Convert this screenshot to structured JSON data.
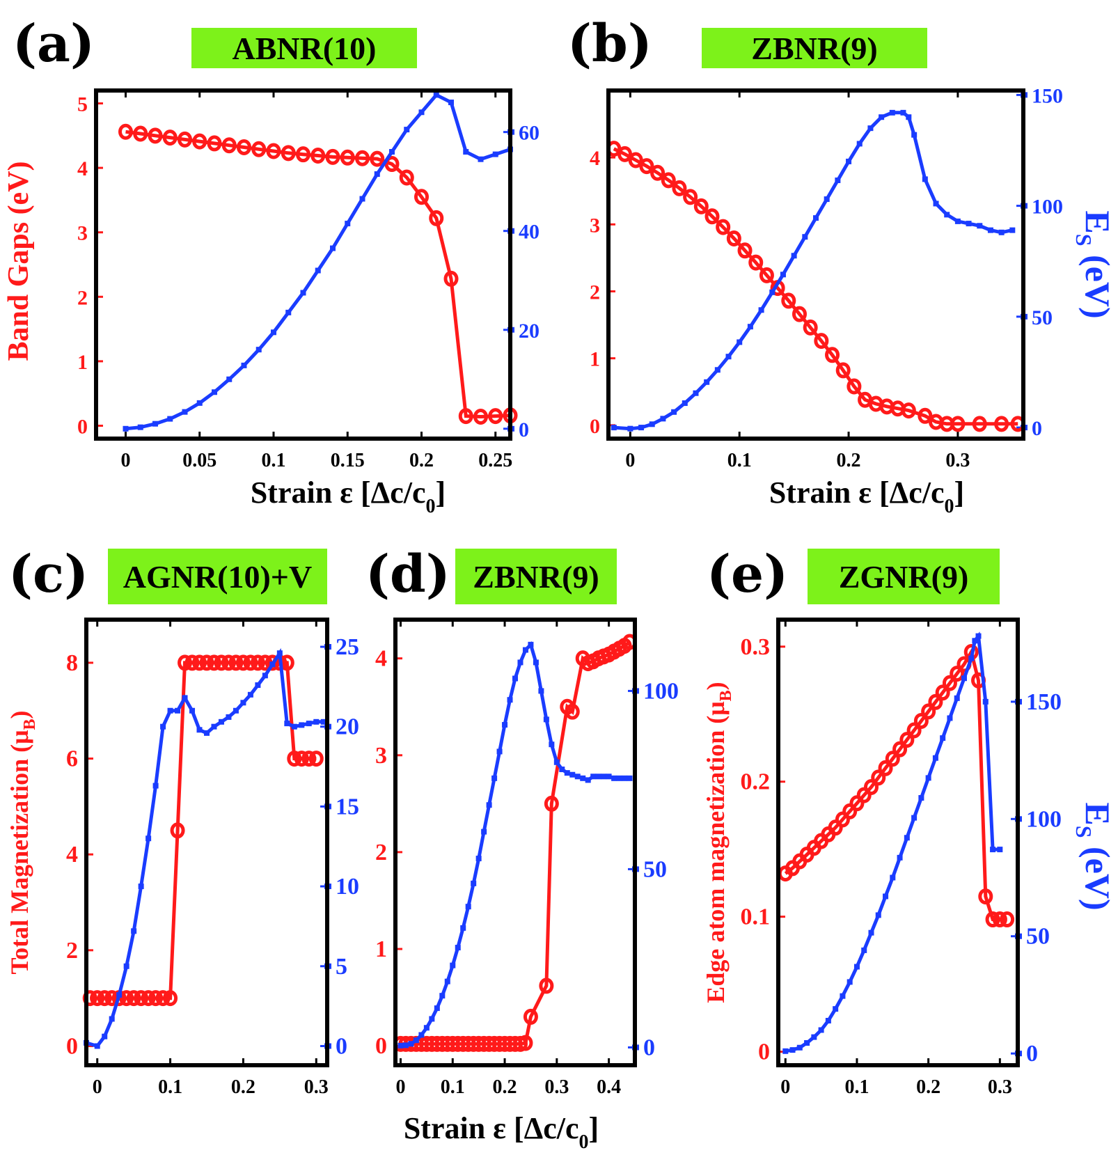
{
  "colors": {
    "red": "#ff1a1a",
    "blue": "#1a3cff",
    "title_bg": "#7df21a"
  },
  "chart_data": [
    {
      "type": "line",
      "letter": "(a)",
      "title": "ABNR(10)",
      "xlabel": "Strain ε [Δc/c",
      "xlabel_sub": "0",
      "xlabel_end": "]",
      "ylabel_left": "Band Gaps (eV)",
      "ylabel_right": "",
      "xlim": [
        -0.02,
        0.26
      ],
      "ylim_left": [
        -0.2,
        5.2
      ],
      "ylim_right": [
        -2,
        68.4
      ],
      "xticks": [
        0,
        0.05,
        0.1,
        0.15,
        0.2,
        0.25
      ],
      "xtick_labels": [
        "0",
        "0.05",
        "0.1",
        "0.15",
        "0.2",
        "0.25"
      ],
      "yticks_left": [
        0,
        1,
        2,
        3,
        4,
        5
      ],
      "yticks_right": [
        0,
        20,
        40,
        60
      ],
      "series": [
        {
          "name": "Band gap",
          "axis": "left",
          "marker": "circle",
          "x": [
            0,
            0.01,
            0.02,
            0.03,
            0.04,
            0.05,
            0.06,
            0.07,
            0.08,
            0.09,
            0.1,
            0.11,
            0.12,
            0.13,
            0.14,
            0.15,
            0.16,
            0.17,
            0.18,
            0.19,
            0.2,
            0.21,
            0.22,
            0.23,
            0.24,
            0.25,
            0.26
          ],
          "values": [
            4.56,
            4.53,
            4.5,
            4.47,
            4.44,
            4.41,
            4.38,
            4.35,
            4.32,
            4.29,
            4.26,
            4.23,
            4.21,
            4.19,
            4.17,
            4.16,
            4.15,
            4.14,
            4.06,
            3.85,
            3.55,
            3.22,
            2.28,
            0.15,
            0.14,
            0.15,
            0.16
          ]
        },
        {
          "name": "Es",
          "axis": "right",
          "marker": "square",
          "x": [
            0,
            0.01,
            0.02,
            0.03,
            0.04,
            0.05,
            0.06,
            0.07,
            0.08,
            0.09,
            0.1,
            0.11,
            0.12,
            0.13,
            0.14,
            0.15,
            0.16,
            0.17,
            0.18,
            0.19,
            0.2,
            0.21,
            0.22,
            0.23,
            0.24,
            0.25,
            0.26
          ],
          "values": [
            0,
            0.3,
            1,
            2,
            3.4,
            5.2,
            7.4,
            10,
            12.8,
            16,
            19.5,
            23.5,
            27.5,
            32,
            36.5,
            41.5,
            46.5,
            51.5,
            56,
            60.5,
            64,
            67.5,
            66,
            56,
            54.5,
            55.5,
            56.5
          ]
        }
      ]
    },
    {
      "type": "line",
      "letter": "(b)",
      "title": "ZBNR(9)",
      "xlabel": "Strain ε [Δc/c",
      "xlabel_sub": "0",
      "xlabel_end": "]",
      "ylabel_left": "",
      "ylabel_right": "E",
      "ylabel_right_sub": "S",
      "ylabel_right_end": " (eV)",
      "xlim": [
        -0.02,
        0.36
      ],
      "ylim_left": [
        -0.2,
        5.0
      ],
      "ylim_right": [
        -5,
        152
      ],
      "xticks": [
        0,
        0.1,
        0.2,
        0.3
      ],
      "xtick_labels": [
        "0",
        "0.1",
        "0.2",
        "0.3"
      ],
      "yticks_left": [
        0,
        1,
        2,
        3,
        4
      ],
      "yticks_right": [
        0,
        50,
        100,
        150
      ],
      "series": [
        {
          "name": "Band gap",
          "axis": "left",
          "marker": "circle",
          "x": [
            -0.015,
            -0.005,
            0.005,
            0.015,
            0.025,
            0.035,
            0.045,
            0.055,
            0.065,
            0.075,
            0.085,
            0.095,
            0.105,
            0.115,
            0.125,
            0.135,
            0.145,
            0.155,
            0.165,
            0.175,
            0.185,
            0.195,
            0.205,
            0.215,
            0.225,
            0.235,
            0.245,
            0.255,
            0.27,
            0.28,
            0.29,
            0.3,
            0.32,
            0.34,
            0.355
          ],
          "values": [
            4.13,
            4.05,
            3.96,
            3.87,
            3.77,
            3.66,
            3.54,
            3.41,
            3.27,
            3.12,
            2.96,
            2.79,
            2.61,
            2.43,
            2.24,
            2.05,
            1.86,
            1.66,
            1.46,
            1.26,
            1.05,
            0.82,
            0.58,
            0.38,
            0.32,
            0.28,
            0.25,
            0.22,
            0.14,
            0.05,
            0.02,
            0.02,
            0.02,
            0.02,
            0.02
          ]
        },
        {
          "name": "Es",
          "axis": "right",
          "marker": "square",
          "x": [
            -0.015,
            0,
            0.01,
            0.02,
            0.03,
            0.04,
            0.05,
            0.06,
            0.07,
            0.08,
            0.09,
            0.1,
            0.11,
            0.12,
            0.13,
            0.14,
            0.15,
            0.16,
            0.17,
            0.18,
            0.19,
            0.2,
            0.21,
            0.22,
            0.23,
            0.24,
            0.25,
            0.255,
            0.26,
            0.27,
            0.28,
            0.29,
            0.3,
            0.31,
            0.32,
            0.33,
            0.34,
            0.35
          ],
          "values": [
            0,
            -0.5,
            0,
            1.5,
            4,
            7,
            11,
            15.5,
            20.5,
            26,
            32,
            38.5,
            45.5,
            53,
            61,
            69,
            77.5,
            86,
            94.5,
            103,
            111.5,
            120,
            128,
            135,
            140,
            142,
            142,
            140,
            132,
            112,
            101,
            96,
            93,
            92,
            91,
            89,
            88,
            89
          ]
        }
      ]
    },
    {
      "type": "line",
      "letter": "(c)",
      "title": "AGNR(10)+V",
      "xlabel": "",
      "ylabel_left": "Total Magnetization (μ",
      "ylabel_left_sub": "B",
      "ylabel_left_end": ")",
      "ylabel_right": "",
      "xlim": [
        -0.015,
        0.315
      ],
      "ylim_left": [
        -0.4,
        8.9
      ],
      "ylim_right": [
        -1.2,
        26.7
      ],
      "xticks": [
        0,
        0.1,
        0.2,
        0.3
      ],
      "xtick_labels": [
        "0",
        "0.1",
        "0.2",
        "0.3"
      ],
      "yticks_left": [
        0,
        2,
        4,
        6,
        8
      ],
      "yticks_right": [
        0,
        5,
        10,
        15,
        20,
        25
      ],
      "series": [
        {
          "name": "Total magnetization",
          "axis": "left",
          "marker": "circle",
          "x": [
            -0.01,
            0,
            0.01,
            0.02,
            0.03,
            0.04,
            0.05,
            0.06,
            0.07,
            0.08,
            0.09,
            0.1,
            0.11,
            0.12,
            0.13,
            0.14,
            0.15,
            0.16,
            0.17,
            0.18,
            0.19,
            0.2,
            0.21,
            0.22,
            0.23,
            0.24,
            0.25,
            0.26,
            0.27,
            0.28,
            0.29,
            0.3
          ],
          "values": [
            1,
            1,
            1,
            1,
            1,
            1,
            1,
            1,
            1,
            1,
            1,
            1,
            4.5,
            8,
            8,
            8,
            8,
            8,
            8,
            8,
            8,
            8,
            8,
            8,
            8,
            8,
            8,
            8,
            6,
            6,
            6,
            6
          ]
        },
        {
          "name": "Es",
          "axis": "right",
          "marker": "square",
          "x": [
            -0.015,
            0,
            0.01,
            0.02,
            0.03,
            0.04,
            0.05,
            0.06,
            0.07,
            0.08,
            0.09,
            0.1,
            0.11,
            0.12,
            0.13,
            0.14,
            0.15,
            0.16,
            0.17,
            0.18,
            0.19,
            0.2,
            0.21,
            0.22,
            0.23,
            0.24,
            0.25,
            0.26,
            0.27,
            0.28,
            0.29,
            0.3,
            0.31
          ],
          "values": [
            0.2,
            0,
            0.6,
            1.7,
            3.2,
            5,
            7.2,
            10,
            13,
            16.3,
            20,
            21,
            21,
            21.8,
            21,
            19.8,
            19.6,
            20,
            20.3,
            20.6,
            21,
            21.5,
            22,
            22.6,
            23.2,
            23.9,
            24.6,
            20.2,
            20,
            20.1,
            20.2,
            20.3,
            20.3
          ]
        }
      ]
    },
    {
      "type": "line",
      "letter": "(d)",
      "title": "ZBNR(9)",
      "xlabel": "Strain ε [Δc/c",
      "xlabel_sub": "0",
      "xlabel_end": "]",
      "ylabel_left": "",
      "ylabel_right": "",
      "xlim": [
        -0.01,
        0.45
      ],
      "ylim_left": [
        -0.2,
        4.4
      ],
      "ylim_right": [
        -5,
        120
      ],
      "xticks": [
        0,
        0.1,
        0.2,
        0.3,
        0.4
      ],
      "xtick_labels": [
        "0",
        "0.1",
        "0.2",
        "0.3",
        "0.4"
      ],
      "yticks_left": [
        0,
        1,
        2,
        3,
        4
      ],
      "yticks_right": [
        0,
        50,
        100
      ],
      "series": [
        {
          "name": "Total magnetization",
          "axis": "left",
          "marker": "circle",
          "x": [
            0,
            0.01,
            0.02,
            0.03,
            0.04,
            0.05,
            0.06,
            0.07,
            0.08,
            0.09,
            0.1,
            0.11,
            0.12,
            0.13,
            0.14,
            0.15,
            0.16,
            0.17,
            0.18,
            0.19,
            0.2,
            0.21,
            0.22,
            0.23,
            0.24,
            0.25,
            0.28,
            0.29,
            0.32,
            0.33,
            0.35,
            0.36,
            0.37,
            0.38,
            0.39,
            0.4,
            0.41,
            0.42,
            0.43,
            0.44
          ],
          "values": [
            0.02,
            0.02,
            0.02,
            0.02,
            0.02,
            0.02,
            0.02,
            0.02,
            0.02,
            0.02,
            0.02,
            0.02,
            0.02,
            0.02,
            0.02,
            0.02,
            0.02,
            0.02,
            0.02,
            0.02,
            0.02,
            0.02,
            0.02,
            0.02,
            0.03,
            0.3,
            0.62,
            2.5,
            3.5,
            3.45,
            4.0,
            3.95,
            3.97,
            4.0,
            4.02,
            4.04,
            4.07,
            4.1,
            4.13,
            4.17
          ]
        },
        {
          "name": "Es",
          "axis": "right",
          "marker": "square",
          "x": [
            0,
            0.01,
            0.02,
            0.03,
            0.04,
            0.05,
            0.06,
            0.07,
            0.08,
            0.09,
            0.1,
            0.11,
            0.12,
            0.13,
            0.14,
            0.15,
            0.16,
            0.17,
            0.18,
            0.19,
            0.2,
            0.21,
            0.22,
            0.23,
            0.24,
            0.25,
            0.26,
            0.27,
            0.28,
            0.29,
            0.3,
            0.31,
            0.32,
            0.33,
            0.34,
            0.35,
            0.36,
            0.37,
            0.38,
            0.39,
            0.4,
            0.41,
            0.42,
            0.43,
            0.44
          ],
          "values": [
            0.5,
            0.6,
            1,
            2,
            3.5,
            5.5,
            8,
            11,
            14.5,
            18.5,
            23,
            28,
            33.5,
            39.5,
            46,
            53,
            60.5,
            68,
            75.5,
            83,
            90.5,
            97.5,
            103.5,
            108,
            111.5,
            113,
            108,
            100,
            92,
            85,
            80,
            78,
            77,
            76.5,
            76,
            75.5,
            75,
            76,
            76,
            76,
            76,
            75.5,
            75.5,
            75.5,
            75.5
          ]
        }
      ]
    },
    {
      "type": "line",
      "letter": "(e)",
      "title": "ZGNR(9)",
      "xlabel": "",
      "ylabel_left": "Edge atom magnetization (μ",
      "ylabel_left_sub": "B",
      "ylabel_left_end": ")",
      "ylabel_right": "E",
      "ylabel_right_sub": "S",
      "ylabel_right_end": " (eV)",
      "xlim": [
        -0.01,
        0.325
      ],
      "ylim_left": [
        -0.01,
        0.32
      ],
      "ylim_right": [
        -5,
        185
      ],
      "xticks": [
        0,
        0.1,
        0.2,
        0.3
      ],
      "xtick_labels": [
        "0",
        "0.1",
        "0.2",
        "0.3"
      ],
      "yticks_left": [
        0,
        0.1,
        0.2,
        0.3
      ],
      "yticks_right": [
        0,
        50,
        100,
        150
      ],
      "series": [
        {
          "name": "Edge atom magnetization",
          "axis": "left",
          "marker": "circle",
          "x": [
            0,
            0.01,
            0.02,
            0.03,
            0.04,
            0.05,
            0.06,
            0.07,
            0.08,
            0.09,
            0.1,
            0.11,
            0.12,
            0.13,
            0.14,
            0.15,
            0.16,
            0.17,
            0.18,
            0.19,
            0.2,
            0.21,
            0.22,
            0.23,
            0.24,
            0.25,
            0.26,
            0.27,
            0.28,
            0.29,
            0.3,
            0.31
          ],
          "values": [
            0.132,
            0.136,
            0.141,
            0.146,
            0.151,
            0.156,
            0.161,
            0.166,
            0.172,
            0.178,
            0.184,
            0.19,
            0.196,
            0.203,
            0.21,
            0.217,
            0.224,
            0.231,
            0.238,
            0.245,
            0.252,
            0.259,
            0.266,
            0.273,
            0.28,
            0.287,
            0.296,
            0.275,
            0.115,
            0.098,
            0.098,
            0.098
          ]
        },
        {
          "name": "Es",
          "axis": "right",
          "marker": "square",
          "x": [
            0,
            0.01,
            0.02,
            0.03,
            0.04,
            0.05,
            0.06,
            0.07,
            0.08,
            0.09,
            0.1,
            0.11,
            0.12,
            0.13,
            0.14,
            0.15,
            0.16,
            0.17,
            0.18,
            0.19,
            0.2,
            0.21,
            0.22,
            0.23,
            0.24,
            0.25,
            0.26,
            0.265,
            0.27,
            0.28,
            0.29,
            0.3
          ],
          "values": [
            1,
            1.5,
            2.5,
            4.5,
            7,
            10,
            14,
            19,
            24.5,
            30.5,
            37,
            44,
            51.5,
            59,
            67,
            75,
            83.5,
            92,
            100.5,
            109,
            117.5,
            126,
            134.5,
            143,
            151.5,
            160,
            168.5,
            176,
            178,
            150,
            87,
            87
          ]
        }
      ]
    }
  ]
}
